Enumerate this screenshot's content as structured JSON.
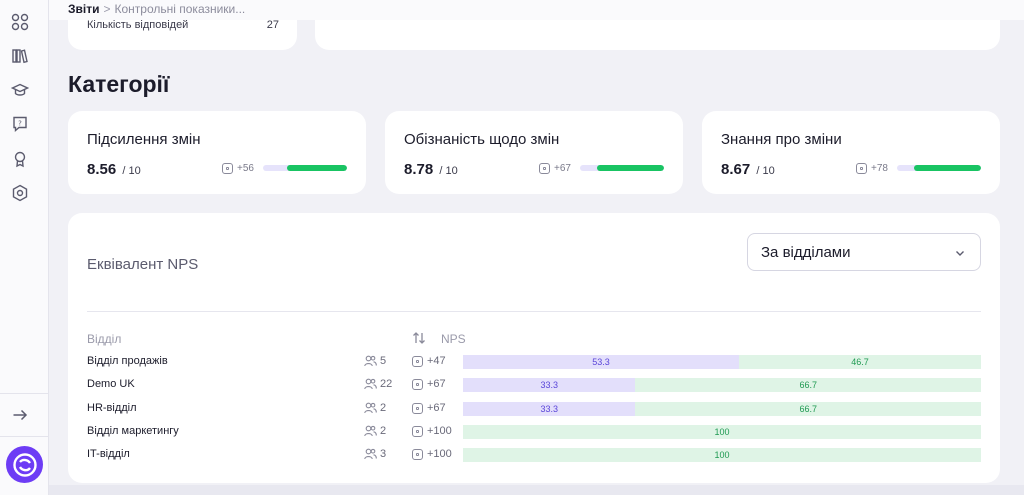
{
  "breadcrumb": {
    "root": "Звіти",
    "separator": ">",
    "current": "Контрольні показники..."
  },
  "previous_cards": {
    "label": "Кількість відповідей",
    "value": "27"
  },
  "section_title": "Категорії",
  "categories": [
    {
      "name": "Підсилення змін",
      "score": "8.56",
      "max": "/ 10",
      "delta": "+56",
      "fill_percent": 72
    },
    {
      "name": "Обізнаність щодо змін",
      "score": "8.78",
      "max": "/ 10",
      "delta": "+67",
      "fill_percent": 80
    },
    {
      "name": "Знання про зміни",
      "score": "8.67",
      "max": "/ 10",
      "delta": "+78",
      "fill_percent": 80
    }
  ],
  "nps": {
    "title": "Еквівалент NPS",
    "select_value": "За відділами",
    "col_department": "Відділ",
    "col_nps": "NPS",
    "rows": [
      {
        "name": "Відділ продажів",
        "people": "5",
        "nps": "+47",
        "negative": 53.3,
        "positive": 46.7,
        "negative_label": "53.3",
        "positive_label": "46.7"
      },
      {
        "name": "Demo UK",
        "people": "22",
        "nps": "+67",
        "negative": 33.3,
        "positive": 66.7,
        "negative_label": "33.3",
        "positive_label": "66.7"
      },
      {
        "name": "HR-відділ",
        "people": "2",
        "nps": "+67",
        "negative": 33.3,
        "positive": 66.7,
        "negative_label": "33.3",
        "positive_label": "66.7"
      },
      {
        "name": "Відділ маркетингу",
        "people": "2",
        "nps": "+100",
        "negative": 0,
        "positive": 100,
        "negative_label": "",
        "positive_label": "100"
      },
      {
        "name": "IT-відділ",
        "people": "3",
        "nps": "+100",
        "negative": 0,
        "positive": 100,
        "negative_label": "",
        "positive_label": "100"
      }
    ]
  },
  "sidebar_icons": [
    "grid-icon",
    "library-icon",
    "graduation-cap-icon",
    "help-chat-icon",
    "award-icon",
    "settings-hexagon-icon"
  ],
  "colors": {
    "accent": "#6d3cf5",
    "positive": "#19c463",
    "negative_bg": "#e3dffb",
    "positive_bg": "#dff4e6"
  }
}
